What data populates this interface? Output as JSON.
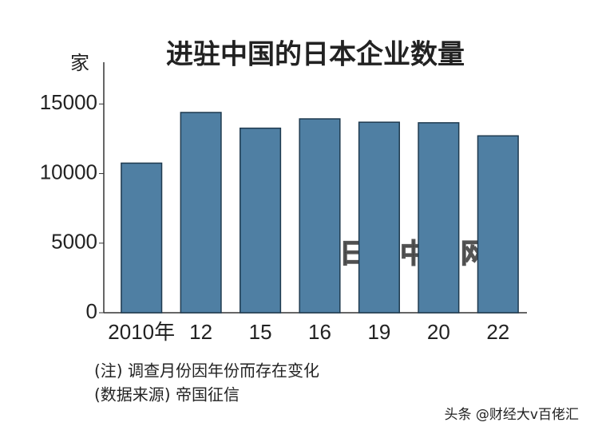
{
  "chart_data": {
    "type": "bar",
    "title": "进驻中国的日本企业数量",
    "y_label": "家",
    "categories": [
      "2010年",
      "12",
      "15",
      "16",
      "19",
      "20",
      "22"
    ],
    "values": [
      10750,
      14390,
      13260,
      13930,
      13690,
      13650,
      12710
    ],
    "color": "#4f7fa3",
    "ylim": [
      0,
      18000
    ],
    "yticks": [
      0,
      5000,
      10000,
      15000
    ],
    "grid": false,
    "notes": [
      "(注) 调查月份因年份而存在变化",
      "(数据来源) 帝国征信"
    ],
    "watermark": "日经中文网",
    "footer": "头条 @财经大v百佬汇"
  }
}
